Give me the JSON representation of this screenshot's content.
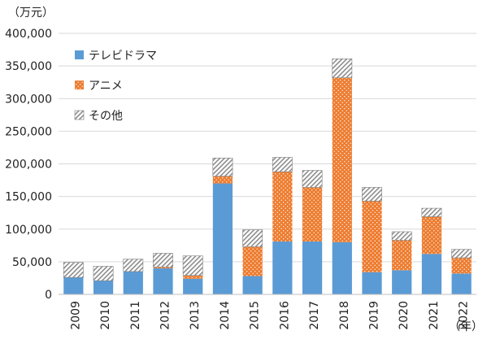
{
  "chart_data": {
    "type": "bar",
    "stacked": true,
    "y_unit_label": "（万元）",
    "x_unit_label": "（年）",
    "ylim": [
      0,
      400000
    ],
    "y_ticks": [
      0,
      50000,
      100000,
      150000,
      200000,
      250000,
      300000,
      350000,
      400000
    ],
    "y_tick_labels": [
      "0",
      "50,000",
      "100,000",
      "150,000",
      "200,000",
      "250,000",
      "300,000",
      "350,000",
      "400,000"
    ],
    "grid": "horizontal",
    "legend_position": "top-left",
    "categories": [
      "2009",
      "2010",
      "2011",
      "2012",
      "2013",
      "2014",
      "2015",
      "2016",
      "2017",
      "2018",
      "2019",
      "2020",
      "2021",
      "2022"
    ],
    "series": [
      {
        "name": "テレビドラマ",
        "color": "#5b9bd5",
        "pattern": "solid",
        "values": [
          26000,
          21000,
          35000,
          40000,
          24000,
          170000,
          28000,
          81000,
          81000,
          80000,
          34000,
          37000,
          62000,
          32000
        ]
      },
      {
        "name": "アニメ",
        "color": "#ed7d31",
        "pattern": "dotted",
        "values": [
          0,
          0,
          0,
          2000,
          5000,
          11000,
          45000,
          107000,
          83000,
          252000,
          109000,
          46000,
          57000,
          24000
        ]
      },
      {
        "name": "その他",
        "color": "#a6a6a6",
        "pattern": "hatched",
        "values": [
          23000,
          22000,
          19000,
          21000,
          30000,
          28000,
          26000,
          22000,
          26000,
          29000,
          21000,
          13000,
          13000,
          13000
        ]
      }
    ]
  }
}
